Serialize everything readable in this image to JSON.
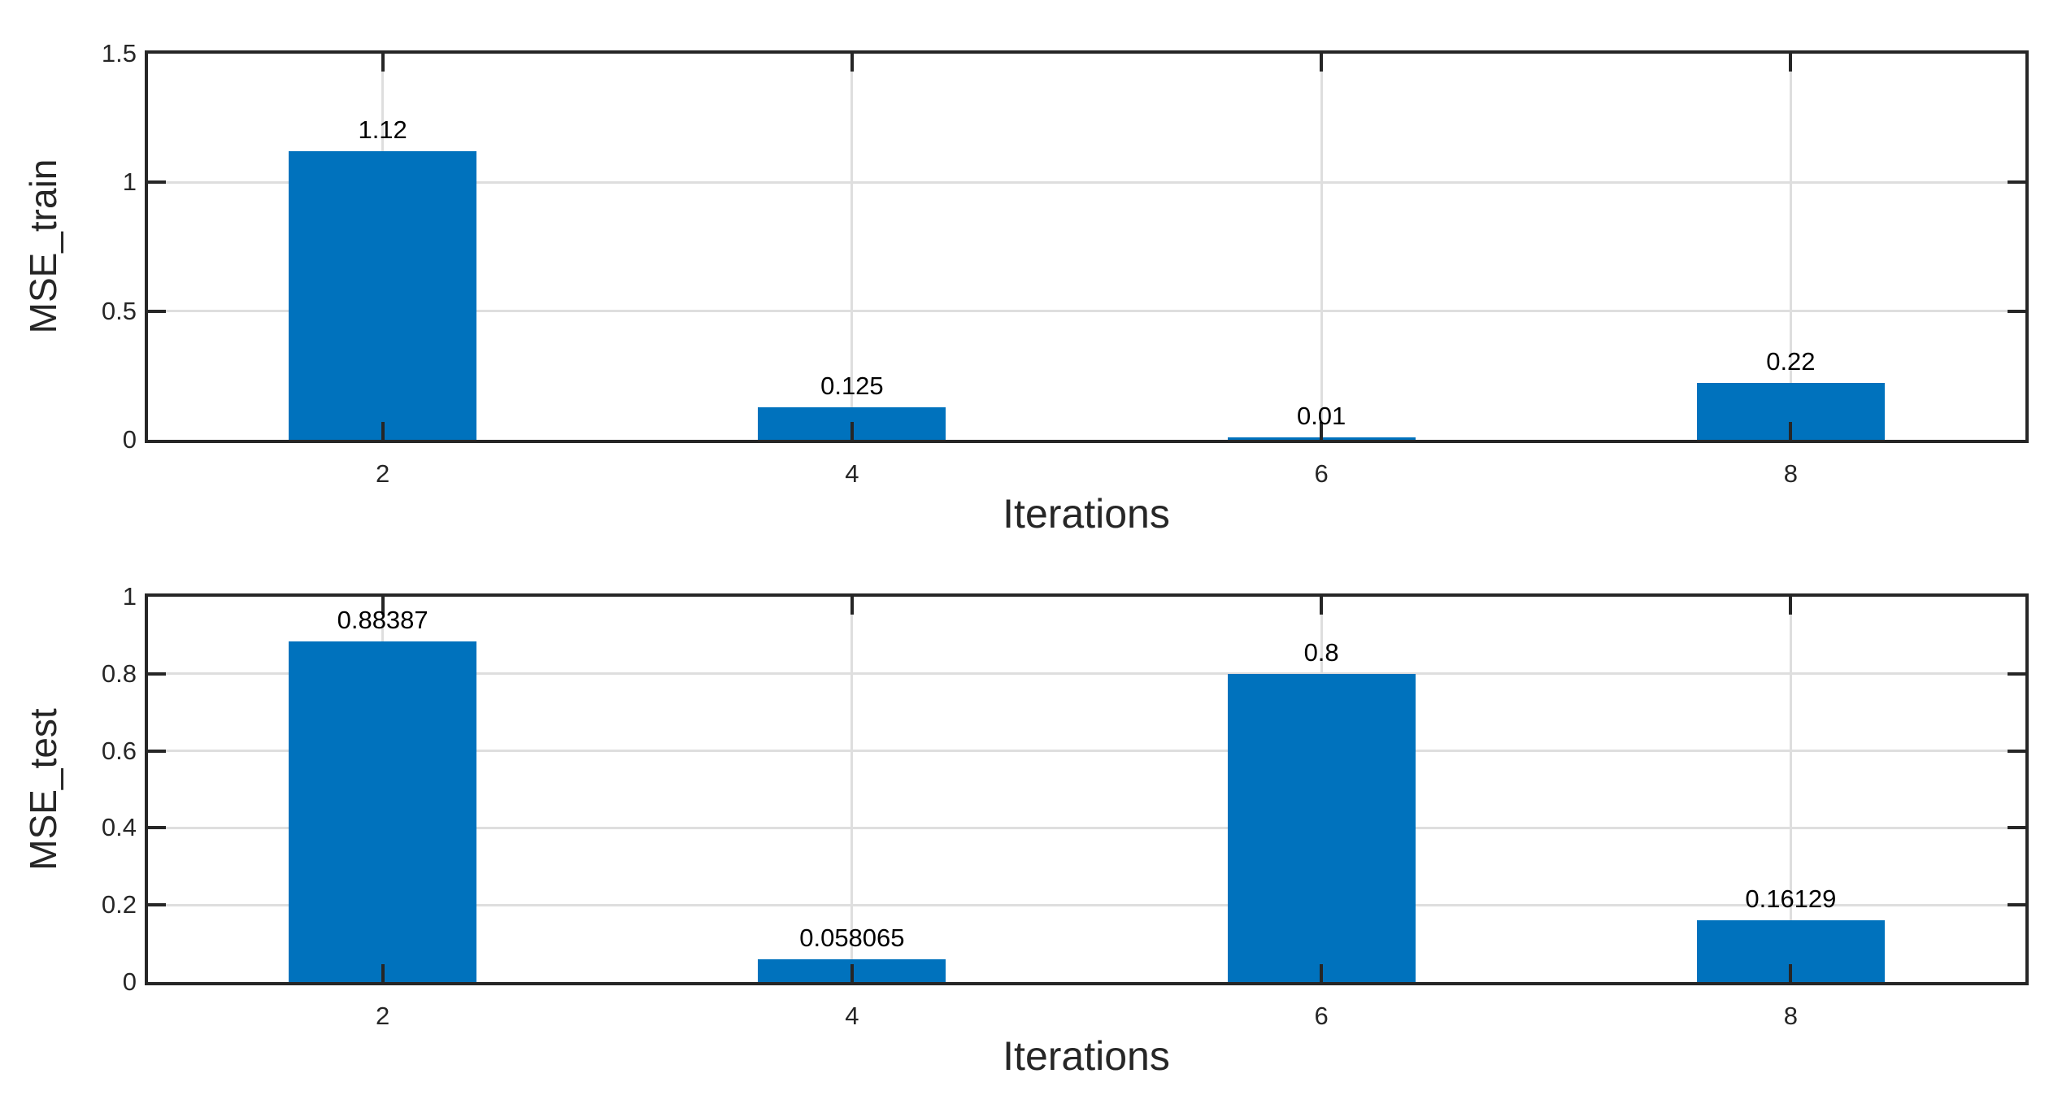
{
  "figure": {
    "background": "#ffffff"
  },
  "style": {
    "bar_color": "#0072BD",
    "axis_color": "#262626",
    "grid_color": "#dedede",
    "label_color": "#262626",
    "value_label_color": "#000000"
  },
  "chart_data": [
    {
      "type": "bar",
      "title": "",
      "xlabel": "Iterations",
      "ylabel": "MSE_train",
      "x": [
        2,
        4,
        6,
        8
      ],
      "values": [
        1.12,
        0.125,
        0.01,
        0.22
      ],
      "bar_labels": [
        "1.12",
        "0.125",
        "0.01",
        "0.22"
      ],
      "xticks": [
        2,
        4,
        6,
        8
      ],
      "xtick_labels": [
        "2",
        "4",
        "6",
        "8"
      ],
      "yticks": [
        0,
        0.5,
        1,
        1.5
      ],
      "ytick_labels": [
        "0",
        "0.5",
        "1",
        "1.5"
      ],
      "xlim": [
        1,
        9
      ],
      "ylim": [
        0,
        1.5
      ],
      "bar_width": 0.8,
      "grid": true,
      "legend": null
    },
    {
      "type": "bar",
      "title": "",
      "xlabel": "Iterations",
      "ylabel": "MSE_test",
      "x": [
        2,
        4,
        6,
        8
      ],
      "values": [
        0.88387,
        0.058065,
        0.8,
        0.16129
      ],
      "bar_labels": [
        "0.88387",
        "0.058065",
        "0.8",
        "0.16129"
      ],
      "xticks": [
        2,
        4,
        6,
        8
      ],
      "xtick_labels": [
        "2",
        "4",
        "6",
        "8"
      ],
      "yticks": [
        0,
        0.2,
        0.4,
        0.6,
        0.8,
        1
      ],
      "ytick_labels": [
        "0",
        "0.2",
        "0.4",
        "0.6",
        "0.8",
        "1"
      ],
      "xlim": [
        1,
        9
      ],
      "ylim": [
        0,
        1
      ],
      "bar_width": 0.8,
      "grid": true,
      "legend": null
    }
  ]
}
